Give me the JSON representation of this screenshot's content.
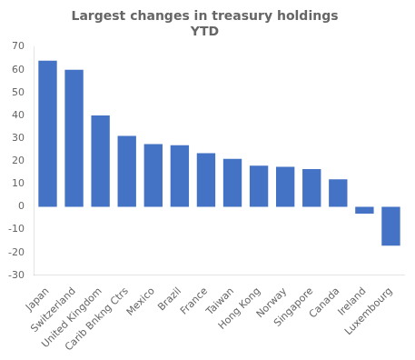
{
  "chart_data": {
    "type": "bar",
    "title": "Largest changes in treasury holdings\nYTD",
    "categories": [
      "Japan",
      "Switzerland",
      "United Kingdom",
      "Carib Bnkng Ctrs",
      "Mexico",
      "Brazil",
      "France",
      "Taiwan",
      "Hong Kong",
      "Norway",
      "Singapore",
      "Canada",
      "Ireland",
      "Luxembourg"
    ],
    "values": [
      64,
      60,
      40,
      31,
      27.5,
      27,
      23.5,
      21,
      18,
      17.5,
      16.5,
      12,
      -3,
      -17
    ],
    "color": "#4472C4",
    "ylim": [
      -30,
      70
    ],
    "yticks": [
      -30,
      -20,
      -10,
      0,
      10,
      20,
      30,
      40,
      50,
      60,
      70
    ],
    "grid": false
  }
}
